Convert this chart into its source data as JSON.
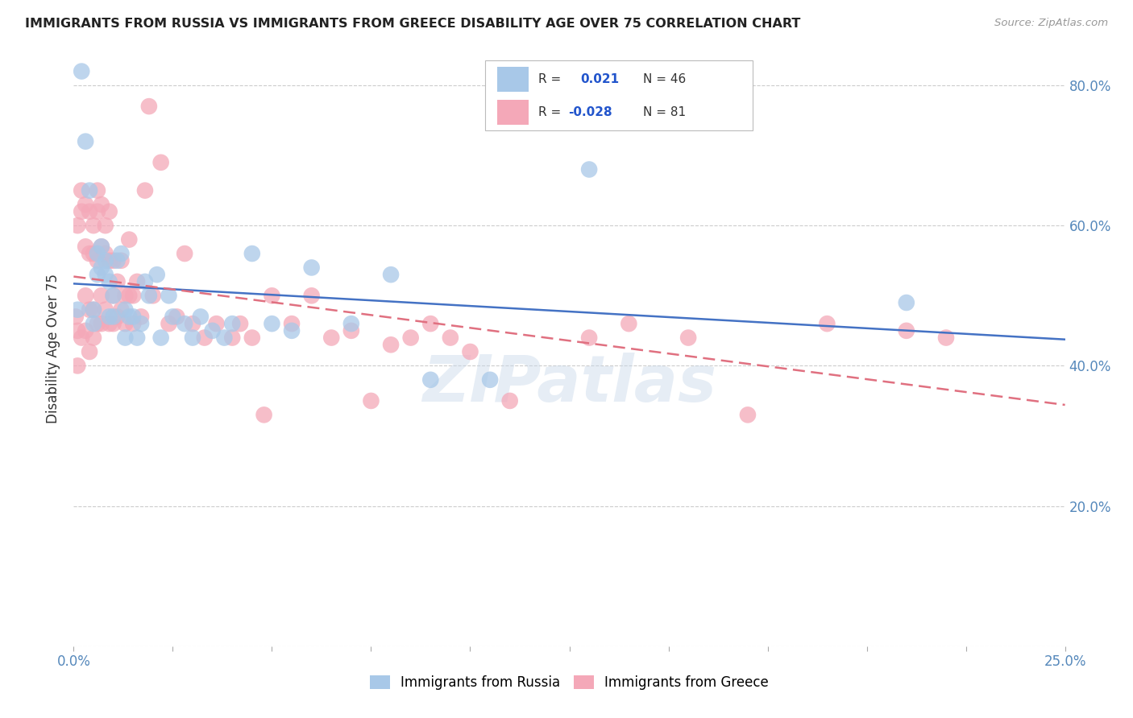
{
  "title": "IMMIGRANTS FROM RUSSIA VS IMMIGRANTS FROM GREECE DISABILITY AGE OVER 75 CORRELATION CHART",
  "source": "Source: ZipAtlas.com",
  "ylabel": "Disability Age Over 75",
  "xlim": [
    0.0,
    0.25
  ],
  "ylim": [
    0.0,
    0.85
  ],
  "xticks": [
    0.0,
    0.025,
    0.05,
    0.075,
    0.1,
    0.125,
    0.15,
    0.175,
    0.2,
    0.225,
    0.25
  ],
  "xtick_labels_show": {
    "0.0": "0.0%",
    "0.25": "25.0%"
  },
  "yticks": [
    0.0,
    0.2,
    0.4,
    0.6,
    0.8
  ],
  "ytick_labels": [
    "",
    "20.0%",
    "40.0%",
    "60.0%",
    "80.0%"
  ],
  "russia_color": "#a8c8e8",
  "greece_color": "#f4a8b8",
  "russia_R": 0.021,
  "russia_N": 46,
  "greece_R": -0.028,
  "greece_N": 81,
  "russia_line_color": "#4472c4",
  "greece_line_color": "#e07080",
  "legend_label_russia": "Immigrants from Russia",
  "legend_label_greece": "Immigrants from Greece",
  "russia_scatter_x": [
    0.001,
    0.002,
    0.003,
    0.004,
    0.005,
    0.005,
    0.006,
    0.006,
    0.007,
    0.007,
    0.008,
    0.008,
    0.009,
    0.009,
    0.01,
    0.01,
    0.011,
    0.012,
    0.013,
    0.013,
    0.014,
    0.015,
    0.016,
    0.017,
    0.018,
    0.019,
    0.021,
    0.022,
    0.024,
    0.025,
    0.028,
    0.03,
    0.032,
    0.035,
    0.038,
    0.04,
    0.045,
    0.05,
    0.055,
    0.06,
    0.07,
    0.08,
    0.09,
    0.105,
    0.13,
    0.21
  ],
  "russia_scatter_y": [
    0.48,
    0.82,
    0.72,
    0.65,
    0.48,
    0.46,
    0.56,
    0.53,
    0.57,
    0.54,
    0.55,
    0.53,
    0.52,
    0.47,
    0.5,
    0.47,
    0.55,
    0.56,
    0.48,
    0.44,
    0.47,
    0.47,
    0.44,
    0.46,
    0.52,
    0.5,
    0.53,
    0.44,
    0.5,
    0.47,
    0.46,
    0.44,
    0.47,
    0.45,
    0.44,
    0.46,
    0.56,
    0.46,
    0.45,
    0.54,
    0.46,
    0.53,
    0.38,
    0.38,
    0.68,
    0.49
  ],
  "greece_scatter_x": [
    0.0005,
    0.001,
    0.001,
    0.001,
    0.002,
    0.002,
    0.002,
    0.003,
    0.003,
    0.003,
    0.003,
    0.004,
    0.004,
    0.004,
    0.004,
    0.005,
    0.005,
    0.005,
    0.005,
    0.006,
    0.006,
    0.006,
    0.006,
    0.007,
    0.007,
    0.007,
    0.007,
    0.008,
    0.008,
    0.008,
    0.009,
    0.009,
    0.009,
    0.01,
    0.01,
    0.01,
    0.011,
    0.011,
    0.012,
    0.012,
    0.013,
    0.013,
    0.014,
    0.014,
    0.015,
    0.015,
    0.016,
    0.017,
    0.018,
    0.019,
    0.02,
    0.022,
    0.024,
    0.026,
    0.028,
    0.03,
    0.033,
    0.036,
    0.04,
    0.042,
    0.045,
    0.048,
    0.05,
    0.055,
    0.06,
    0.065,
    0.07,
    0.075,
    0.08,
    0.085,
    0.09,
    0.095,
    0.1,
    0.11,
    0.13,
    0.14,
    0.155,
    0.17,
    0.19,
    0.21,
    0.22
  ],
  "greece_scatter_y": [
    0.47,
    0.6,
    0.45,
    0.4,
    0.65,
    0.62,
    0.44,
    0.63,
    0.57,
    0.5,
    0.45,
    0.62,
    0.56,
    0.48,
    0.42,
    0.6,
    0.56,
    0.48,
    0.44,
    0.65,
    0.62,
    0.55,
    0.46,
    0.63,
    0.57,
    0.5,
    0.46,
    0.6,
    0.56,
    0.48,
    0.62,
    0.55,
    0.46,
    0.55,
    0.5,
    0.46,
    0.52,
    0.47,
    0.55,
    0.48,
    0.5,
    0.46,
    0.58,
    0.5,
    0.5,
    0.46,
    0.52,
    0.47,
    0.65,
    0.77,
    0.5,
    0.69,
    0.46,
    0.47,
    0.56,
    0.46,
    0.44,
    0.46,
    0.44,
    0.46,
    0.44,
    0.33,
    0.5,
    0.46,
    0.5,
    0.44,
    0.45,
    0.35,
    0.43,
    0.44,
    0.46,
    0.44,
    0.42,
    0.35,
    0.44,
    0.46,
    0.44,
    0.33,
    0.46,
    0.45,
    0.44
  ],
  "watermark": "ZIPatlas",
  "background_color": "#ffffff",
  "grid_color": "#cccccc"
}
